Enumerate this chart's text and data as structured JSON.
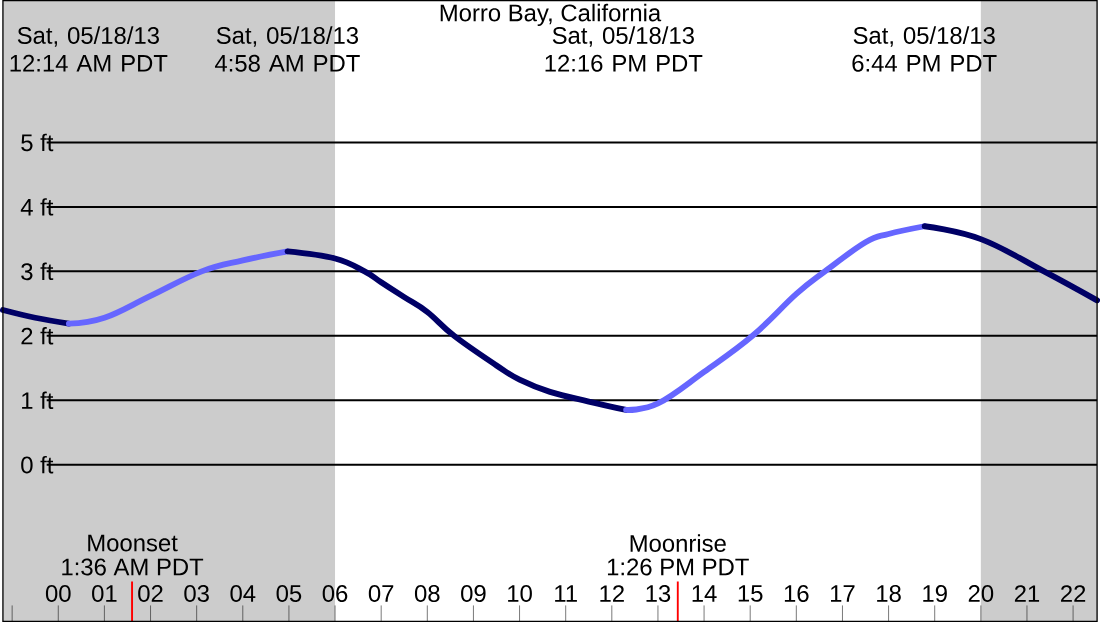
{
  "chart_data": {
    "type": "line",
    "title": "Morro Bay, California",
    "xlim": [
      -1.2,
      22.52
    ],
    "ylim": [
      -2.43,
      7.2
    ],
    "xticks": [
      {
        "value": -1,
        "label": null
      },
      {
        "value": 0,
        "label": "00"
      },
      {
        "value": 1,
        "label": "01"
      },
      {
        "value": 2,
        "label": "02"
      },
      {
        "value": 3,
        "label": "03"
      },
      {
        "value": 4,
        "label": "04"
      },
      {
        "value": 5,
        "label": "05"
      },
      {
        "value": 6,
        "label": "06"
      },
      {
        "value": 7,
        "label": "07"
      },
      {
        "value": 8,
        "label": "08"
      },
      {
        "value": 9,
        "label": "09"
      },
      10,
      11,
      12,
      13,
      14,
      15,
      16,
      17,
      18,
      19,
      20,
      21,
      22
    ],
    "yticks": [
      {
        "value": 0,
        "label": "0 ft"
      },
      {
        "value": 1,
        "label": "1 ft"
      },
      {
        "value": 2,
        "label": "2 ft"
      },
      {
        "value": 3,
        "label": "3 ft"
      },
      {
        "value": 4,
        "label": "4 ft"
      },
      {
        "value": 5,
        "label": "5 ft"
      }
    ],
    "grid": "y",
    "bands": [
      {
        "axis": "x",
        "from": -1.2,
        "to": 6.0,
        "color": "#cccccc"
      },
      {
        "axis": "x",
        "from": 20.0,
        "to": 22.52,
        "color": "#cccccc"
      }
    ],
    "series": [
      {
        "color": "#000066",
        "x": [
          -1.2,
          -0.5,
          0.23
        ],
        "values": [
          2.4,
          2.28,
          2.19
        ]
      },
      {
        "color": "#6666ff",
        "x": [
          0.23,
          1,
          2,
          3.11,
          4,
          4.97
        ],
        "values": [
          2.19,
          2.28,
          2.62,
          3.0,
          3.17,
          3.31
        ]
      },
      {
        "color": "#000066",
        "x": [
          4.97,
          6,
          6.64,
          7,
          7.5,
          8,
          8.58,
          9.5,
          10,
          10.66,
          11.5,
          12.31
        ],
        "values": [
          3.31,
          3.2,
          3.0,
          2.83,
          2.6,
          2.37,
          2.0,
          1.54,
          1.32,
          1.13,
          0.98,
          0.85
        ]
      },
      {
        "color": "#6666ff",
        "x": [
          12.31,
          13,
          14,
          15.05,
          16,
          16.62,
          17.5,
          18,
          18.78
        ],
        "values": [
          0.85,
          0.95,
          1.44,
          2.0,
          2.65,
          3.0,
          3.45,
          3.58,
          3.7
        ]
      },
      {
        "color": "#000066",
        "x": [
          18.78,
          20,
          21.37,
          22.52
        ],
        "values": [
          3.7,
          3.5,
          3.0,
          2.55
        ]
      }
    ],
    "ref_lines": [
      {
        "axis": "x",
        "value": 1.6,
        "label": "Moonset",
        "color": "#ff0000"
      },
      {
        "axis": "x",
        "value": 13.43,
        "label": "Moonrise",
        "color": "#ff0000"
      }
    ],
    "annotations": [
      "Sat, 05/18/13 12:14 AM PDT",
      "Sat, 05/18/13 4:58 AM PDT",
      "Sat, 05/18/13 12:16 PM PDT",
      "Sat, 05/18/13 6:44 PM PDT",
      "1:36 AM PDT",
      "1:26 PM PDT"
    ]
  }
}
